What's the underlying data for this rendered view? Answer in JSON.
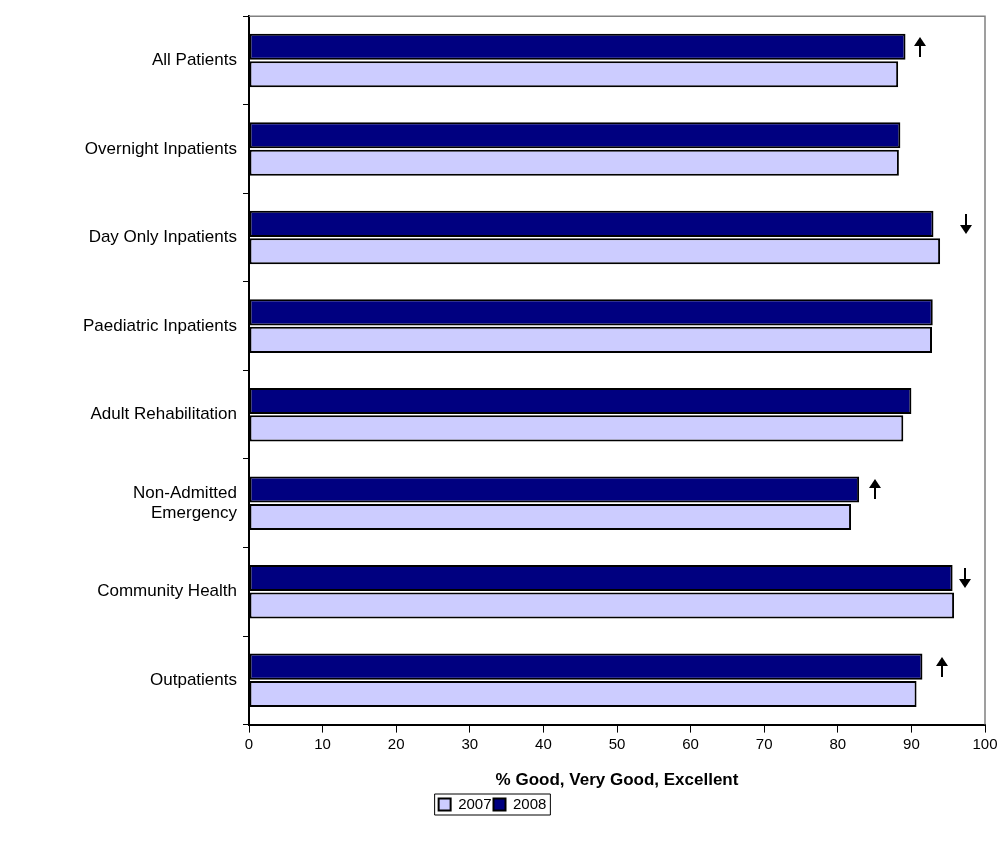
{
  "chart_data": {
    "type": "bar",
    "orientation": "horizontal",
    "xlabel": "% Good, Very Good, Excellent",
    "categories": [
      "All Patients",
      "Overnight Inpatients",
      "Day Only Inpatients",
      "Paediatric Inpatients",
      "Adult Rehabilitation",
      "Non-Admitted Emergency",
      "Community Health",
      "Outpatients"
    ],
    "series": [
      {
        "name": "2007",
        "color": "#ccccff",
        "values": [
          88.2,
          88.3,
          93.9,
          92.8,
          88.9,
          81.8,
          95.8,
          90.7
        ]
      },
      {
        "name": "2008",
        "color": "#000080",
        "values": [
          89.2,
          88.5,
          93.0,
          92.9,
          90.0,
          82.9,
          95.6,
          91.5
        ]
      }
    ],
    "xlim": [
      0,
      100
    ],
    "xticks": [
      0,
      10,
      20,
      30,
      40,
      50,
      60,
      70,
      80,
      90,
      100
    ],
    "grid": false,
    "legend": "bottom"
  }
}
